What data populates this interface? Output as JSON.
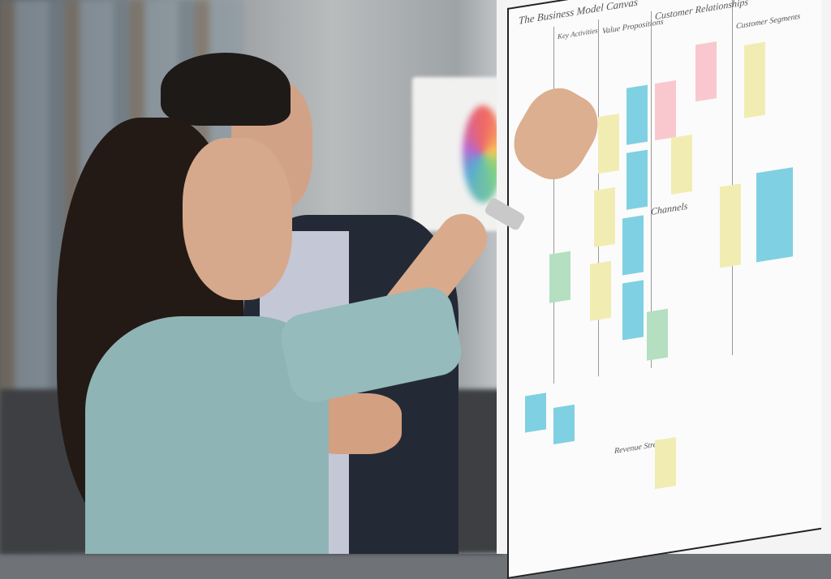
{
  "scene": "two people at a whiteboard with sticky notes",
  "board": {
    "title": "The Business Model Canvas",
    "sections": [
      "Key Activities",
      "Value Propositions",
      "Customer Relationships",
      "Customer Segments",
      "Channels",
      "Revenue Streams"
    ]
  },
  "colors": {
    "sticky_yellow": "#f1edb2",
    "sticky_blue": "#7fd0e2",
    "sticky_pink": "#f9c8cf",
    "sticky_green": "#b4dfc0",
    "blouse": "#8fb4b6",
    "jacket": "#232a36"
  }
}
